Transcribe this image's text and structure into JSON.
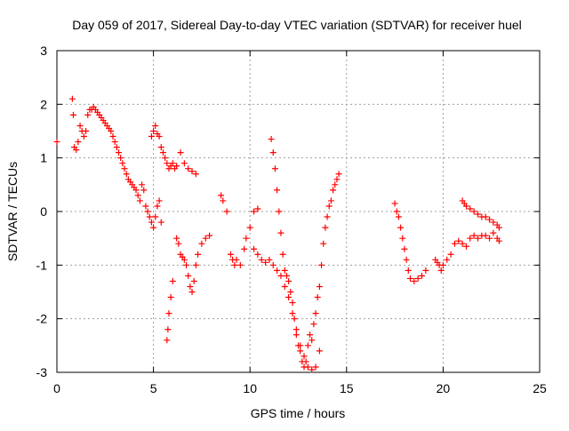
{
  "chart_data": {
    "type": "scatter",
    "title": "Day 059 of 2017, Sidereal Day-to-day VTEC variation (SDTVAR) for receiver huel",
    "xlabel": "GPS time / hours",
    "ylabel": "SDTVAR / TECUs",
    "xlim": [
      0,
      25
    ],
    "ylim": [
      -3,
      3
    ],
    "xticks": [
      0,
      5,
      10,
      15,
      20,
      25
    ],
    "yticks": [
      -3,
      -2,
      -1,
      0,
      1,
      2,
      3
    ],
    "xtick_labels": [
      "0",
      "5",
      "10",
      "15",
      "20",
      "25"
    ],
    "ytick_labels": [
      "-3",
      "-2",
      "-1",
      "0",
      "1",
      "2",
      "3"
    ],
    "grid": true,
    "marker": "+",
    "color": "#ff0000",
    "series": [
      {
        "name": "SDTVAR",
        "points": [
          [
            0.0,
            1.3
          ],
          [
            0.8,
            2.1
          ],
          [
            0.85,
            1.8
          ],
          [
            0.9,
            1.2
          ],
          [
            1.0,
            1.15
          ],
          [
            1.1,
            1.3
          ],
          [
            1.2,
            1.6
          ],
          [
            1.3,
            1.5
          ],
          [
            1.4,
            1.4
          ],
          [
            1.5,
            1.5
          ],
          [
            1.6,
            1.8
          ],
          [
            1.7,
            1.9
          ],
          [
            1.8,
            1.9
          ],
          [
            1.9,
            1.95
          ],
          [
            2.0,
            1.9
          ],
          [
            2.1,
            1.85
          ],
          [
            2.2,
            1.8
          ],
          [
            2.3,
            1.75
          ],
          [
            2.4,
            1.7
          ],
          [
            2.5,
            1.65
          ],
          [
            2.6,
            1.6
          ],
          [
            2.7,
            1.55
          ],
          [
            2.8,
            1.5
          ],
          [
            2.9,
            1.4
          ],
          [
            3.0,
            1.3
          ],
          [
            3.1,
            1.2
          ],
          [
            3.2,
            1.1
          ],
          [
            3.3,
            1.0
          ],
          [
            3.4,
            0.9
          ],
          [
            3.5,
            0.8
          ],
          [
            3.6,
            0.7
          ],
          [
            3.7,
            0.6
          ],
          [
            3.8,
            0.55
          ],
          [
            3.9,
            0.5
          ],
          [
            4.0,
            0.45
          ],
          [
            4.1,
            0.4
          ],
          [
            4.2,
            0.3
          ],
          [
            4.3,
            0.2
          ],
          [
            4.4,
            0.5
          ],
          [
            4.5,
            0.4
          ],
          [
            4.6,
            0.1
          ],
          [
            4.7,
            0.0
          ],
          [
            4.8,
            -0.1
          ],
          [
            4.9,
            -0.2
          ],
          [
            5.0,
            -0.3
          ],
          [
            5.1,
            -0.1
          ],
          [
            5.2,
            0.1
          ],
          [
            5.3,
            0.2
          ],
          [
            5.4,
            -0.2
          ],
          [
            4.9,
            1.4
          ],
          [
            5.0,
            1.5
          ],
          [
            5.1,
            1.6
          ],
          [
            5.2,
            1.45
          ],
          [
            5.3,
            1.4
          ],
          [
            5.4,
            1.2
          ],
          [
            5.5,
            1.1
          ],
          [
            5.6,
            1.0
          ],
          [
            5.7,
            0.9
          ],
          [
            5.8,
            0.8
          ],
          [
            5.9,
            0.85
          ],
          [
            6.0,
            0.9
          ],
          [
            6.1,
            0.8
          ],
          [
            6.2,
            0.85
          ],
          [
            6.4,
            1.1
          ],
          [
            6.6,
            0.9
          ],
          [
            6.8,
            0.8
          ],
          [
            7.0,
            0.75
          ],
          [
            7.2,
            0.7
          ],
          [
            5.7,
            -2.4
          ],
          [
            5.75,
            -2.2
          ],
          [
            5.8,
            -1.9
          ],
          [
            5.9,
            -1.6
          ],
          [
            6.0,
            -1.3
          ],
          [
            6.2,
            -0.5
          ],
          [
            6.3,
            -0.6
          ],
          [
            6.4,
            -0.8
          ],
          [
            6.5,
            -0.85
          ],
          [
            6.6,
            -0.9
          ],
          [
            6.7,
            -1.0
          ],
          [
            6.8,
            -1.2
          ],
          [
            6.9,
            -1.4
          ],
          [
            7.0,
            -1.5
          ],
          [
            7.1,
            -1.3
          ],
          [
            7.2,
            -1.0
          ],
          [
            7.3,
            -0.8
          ],
          [
            7.5,
            -0.6
          ],
          [
            7.7,
            -0.5
          ],
          [
            7.9,
            -0.45
          ],
          [
            8.5,
            0.3
          ],
          [
            8.6,
            0.2
          ],
          [
            8.8,
            0.0
          ],
          [
            9.0,
            -0.8
          ],
          [
            9.1,
            -0.9
          ],
          [
            9.2,
            -1.0
          ],
          [
            9.3,
            -0.9
          ],
          [
            9.5,
            -1.0
          ],
          [
            9.7,
            -0.7
          ],
          [
            9.8,
            -0.5
          ],
          [
            10.0,
            -0.3
          ],
          [
            10.2,
            0.0
          ],
          [
            10.4,
            0.05
          ],
          [
            10.2,
            -0.7
          ],
          [
            10.4,
            -0.8
          ],
          [
            10.6,
            -0.9
          ],
          [
            10.8,
            -0.95
          ],
          [
            11.0,
            -0.9
          ],
          [
            11.2,
            -1.0
          ],
          [
            11.4,
            -1.1
          ],
          [
            11.6,
            -1.2
          ],
          [
            11.8,
            -1.4
          ],
          [
            12.0,
            -1.6
          ],
          [
            12.2,
            -1.9
          ],
          [
            12.4,
            -2.2
          ],
          [
            12.6,
            -2.5
          ],
          [
            12.8,
            -2.7
          ],
          [
            13.0,
            -2.9
          ],
          [
            13.2,
            -2.95
          ],
          [
            13.4,
            -2.9
          ],
          [
            13.6,
            -2.6
          ],
          [
            11.1,
            1.35
          ],
          [
            11.2,
            1.1
          ],
          [
            11.3,
            0.8
          ],
          [
            11.4,
            0.4
          ],
          [
            11.5,
            0.0
          ],
          [
            11.6,
            -0.4
          ],
          [
            11.7,
            -0.8
          ],
          [
            11.8,
            -1.1
          ],
          [
            11.9,
            -1.2
          ],
          [
            12.0,
            -1.3
          ],
          [
            12.1,
            -1.5
          ],
          [
            12.2,
            -1.7
          ],
          [
            12.3,
            -2.0
          ],
          [
            12.4,
            -2.3
          ],
          [
            12.5,
            -2.5
          ],
          [
            12.6,
            -2.6
          ],
          [
            12.7,
            -2.8
          ],
          [
            12.8,
            -2.9
          ],
          [
            12.9,
            -2.8
          ],
          [
            13.0,
            -2.5
          ],
          [
            13.1,
            -2.3
          ],
          [
            13.2,
            -2.4
          ],
          [
            13.3,
            -2.1
          ],
          [
            13.4,
            -1.9
          ],
          [
            13.5,
            -1.6
          ],
          [
            13.6,
            -1.4
          ],
          [
            13.7,
            -1.0
          ],
          [
            13.8,
            -0.6
          ],
          [
            13.9,
            -0.3
          ],
          [
            14.0,
            -0.1
          ],
          [
            14.1,
            0.1
          ],
          [
            14.2,
            0.2
          ],
          [
            14.3,
            0.4
          ],
          [
            14.4,
            0.5
          ],
          [
            14.5,
            0.6
          ],
          [
            14.6,
            0.7
          ],
          [
            17.5,
            0.15
          ],
          [
            17.6,
            0.0
          ],
          [
            17.7,
            -0.1
          ],
          [
            17.8,
            -0.3
          ],
          [
            17.9,
            -0.5
          ],
          [
            18.0,
            -0.7
          ],
          [
            18.1,
            -0.9
          ],
          [
            18.2,
            -1.1
          ],
          [
            18.3,
            -1.25
          ],
          [
            18.5,
            -1.3
          ],
          [
            18.7,
            -1.25
          ],
          [
            18.9,
            -1.2
          ],
          [
            19.1,
            -1.1
          ],
          [
            19.6,
            -0.9
          ],
          [
            19.7,
            -0.95
          ],
          [
            19.8,
            -1.0
          ],
          [
            19.9,
            -1.1
          ],
          [
            20.0,
            -1.0
          ],
          [
            20.2,
            -0.9
          ],
          [
            20.4,
            -0.8
          ],
          [
            20.6,
            -0.6
          ],
          [
            20.8,
            -0.55
          ],
          [
            21.0,
            -0.6
          ],
          [
            21.2,
            -0.65
          ],
          [
            21.4,
            -0.5
          ],
          [
            21.6,
            -0.45
          ],
          [
            21.8,
            -0.5
          ],
          [
            22.0,
            -0.45
          ],
          [
            22.2,
            -0.45
          ],
          [
            22.4,
            -0.5
          ],
          [
            22.6,
            -0.4
          ],
          [
            22.8,
            -0.5
          ],
          [
            22.9,
            -0.55
          ],
          [
            21.0,
            0.2
          ],
          [
            21.1,
            0.15
          ],
          [
            21.2,
            0.1
          ],
          [
            21.4,
            0.05
          ],
          [
            21.6,
            0.0
          ],
          [
            21.8,
            -0.05
          ],
          [
            22.0,
            -0.1
          ],
          [
            22.2,
            -0.1
          ],
          [
            22.4,
            -0.15
          ],
          [
            22.6,
            -0.2
          ],
          [
            22.8,
            -0.25
          ],
          [
            22.9,
            -0.3
          ]
        ]
      }
    ]
  }
}
